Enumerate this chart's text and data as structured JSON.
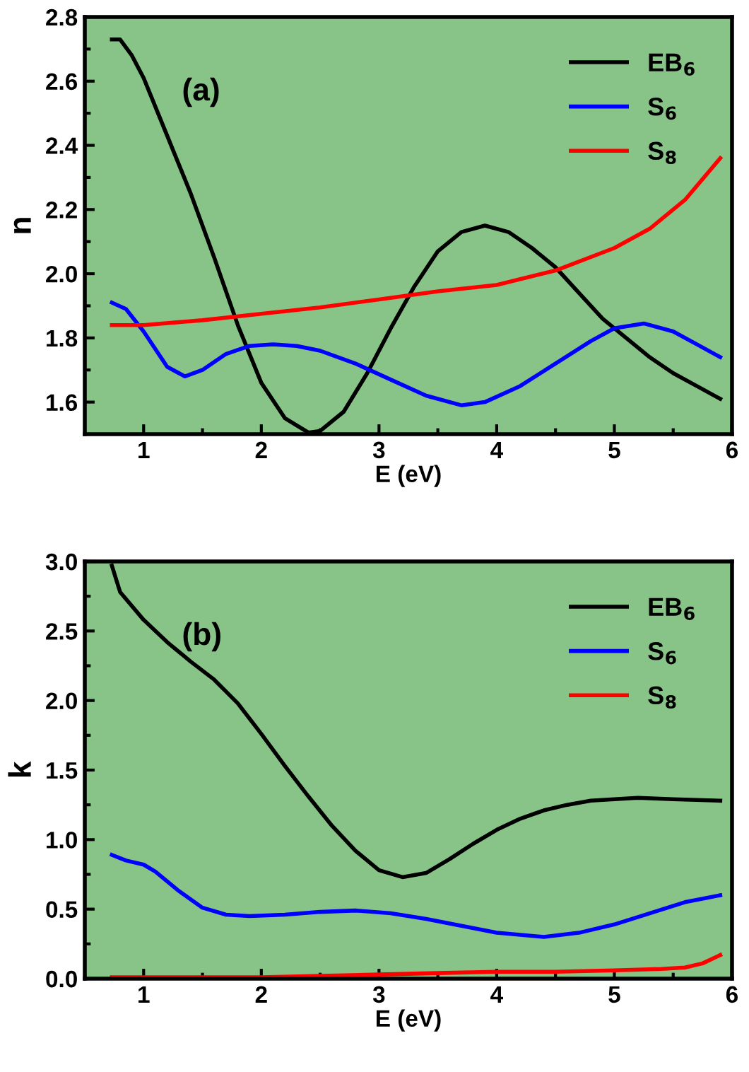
{
  "chart_data": [
    {
      "type": "line",
      "xlabel": "E (eV)",
      "ylabel": "n",
      "annotations": [
        "(a)"
      ],
      "xlim": [
        0.5,
        6
      ],
      "xticks": [
        1,
        2,
        3,
        4,
        5,
        6
      ],
      "ylim": [
        1.5,
        2.8
      ],
      "yticks": [
        1.6,
        1.8,
        {
          "value": 2.0,
          "label": "2.0"
        },
        2.2,
        2.4,
        2.6,
        2.8
      ],
      "legend": "top right",
      "grid": false,
      "marker": "none",
      "line_style": "solid",
      "series": [
        {
          "name": "EB$_{6}$",
          "color": "#000000",
          "x": [
            0.73,
            0.8,
            0.9,
            1.0,
            1.2,
            1.4,
            1.6,
            1.8,
            2.0,
            2.2,
            2.4,
            2.5,
            2.7,
            2.9,
            3.1,
            3.3,
            3.5,
            3.7,
            3.9,
            4.1,
            4.3,
            4.5,
            4.7,
            4.9,
            5.1,
            5.3,
            5.5,
            5.7,
            5.9
          ],
          "values": [
            2.73,
            2.73,
            2.68,
            2.61,
            2.43,
            2.25,
            2.05,
            1.84,
            1.66,
            1.55,
            1.505,
            1.51,
            1.57,
            1.69,
            1.83,
            1.96,
            2.07,
            2.13,
            2.15,
            2.13,
            2.08,
            2.02,
            1.94,
            1.86,
            1.8,
            1.74,
            1.69,
            1.65,
            1.61
          ]
        },
        {
          "name": "S$_{6}$",
          "color": "#0000ff",
          "x": [
            0.73,
            0.85,
            1.0,
            1.2,
            1.35,
            1.5,
            1.7,
            1.9,
            2.1,
            2.3,
            2.5,
            2.8,
            3.1,
            3.4,
            3.7,
            3.9,
            4.2,
            4.5,
            4.8,
            5.0,
            5.25,
            5.5,
            5.7,
            5.9
          ],
          "values": [
            1.91,
            1.89,
            1.82,
            1.71,
            1.68,
            1.7,
            1.75,
            1.775,
            1.78,
            1.775,
            1.76,
            1.72,
            1.67,
            1.62,
            1.59,
            1.6,
            1.65,
            1.72,
            1.79,
            1.83,
            1.845,
            1.82,
            1.78,
            1.74
          ]
        },
        {
          "name": "S$_{8}$",
          "color": "#ff0000",
          "x": [
            0.73,
            1.0,
            1.5,
            2.0,
            2.5,
            3.0,
            3.5,
            4.0,
            4.5,
            5.0,
            5.3,
            5.6,
            5.9
          ],
          "values": [
            1.84,
            1.84,
            1.855,
            1.875,
            1.895,
            1.92,
            1.945,
            1.965,
            2.01,
            2.08,
            2.14,
            2.23,
            2.36
          ]
        }
      ]
    },
    {
      "type": "line",
      "xlabel": "E (eV)",
      "ylabel": "k",
      "annotations": [
        "(b)"
      ],
      "xlim": [
        0.5,
        6
      ],
      "xticks": [
        1,
        2,
        3,
        4,
        5,
        6
      ],
      "ylim": [
        0,
        3.0
      ],
      "yticks": [
        {
          "value": 0,
          "label": "0.0"
        },
        0.5,
        {
          "value": 1,
          "label": "1.0"
        },
        1.5,
        {
          "value": 2,
          "label": "2.0"
        },
        2.5,
        {
          "value": 3,
          "label": "3.0"
        }
      ],
      "legend": "top right",
      "grid": false,
      "marker": "none",
      "line_style": "solid",
      "series": [
        {
          "name": "EB$_{6}$",
          "color": "#000000",
          "x": [
            0.73,
            0.8,
            1.0,
            1.2,
            1.4,
            1.6,
            1.8,
            2.0,
            2.2,
            2.4,
            2.6,
            2.8,
            3.0,
            3.2,
            3.4,
            3.6,
            3.8,
            4.0,
            4.2,
            4.4,
            4.6,
            4.8,
            5.0,
            5.2,
            5.5,
            5.9
          ],
          "values": [
            2.97,
            2.78,
            2.58,
            2.42,
            2.28,
            2.15,
            1.98,
            1.76,
            1.53,
            1.31,
            1.1,
            0.92,
            0.78,
            0.73,
            0.76,
            0.86,
            0.97,
            1.07,
            1.15,
            1.21,
            1.25,
            1.28,
            1.29,
            1.3,
            1.29,
            1.28
          ]
        },
        {
          "name": "S$_{6}$",
          "color": "#0000ff",
          "x": [
            0.73,
            0.85,
            1.0,
            1.1,
            1.3,
            1.5,
            1.7,
            1.9,
            2.2,
            2.5,
            2.8,
            3.1,
            3.4,
            3.7,
            4.0,
            4.4,
            4.7,
            5.0,
            5.3,
            5.6,
            5.9
          ],
          "values": [
            0.89,
            0.85,
            0.82,
            0.77,
            0.63,
            0.51,
            0.46,
            0.45,
            0.46,
            0.48,
            0.49,
            0.47,
            0.43,
            0.38,
            0.33,
            0.3,
            0.33,
            0.39,
            0.47,
            0.55,
            0.6
          ]
        },
        {
          "name": "S$_{8}$",
          "color": "#ff0000",
          "x": [
            0.73,
            1.5,
            2.0,
            2.5,
            3.0,
            3.5,
            4.0,
            4.5,
            5.0,
            5.4,
            5.6,
            5.75,
            5.9
          ],
          "values": [
            0.01,
            0.01,
            0.01,
            0.02,
            0.03,
            0.04,
            0.05,
            0.05,
            0.06,
            0.07,
            0.08,
            0.11,
            0.17
          ]
        }
      ]
    }
  ]
}
